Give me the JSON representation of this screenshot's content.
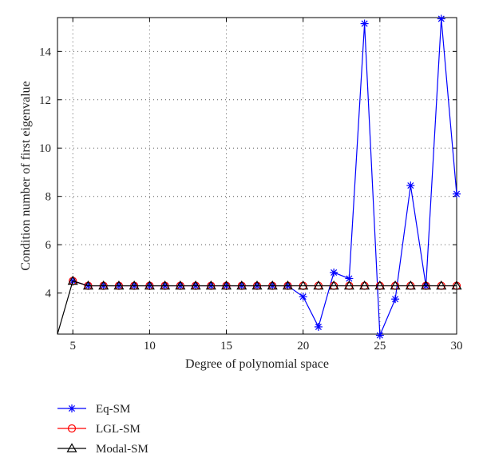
{
  "chart_data": {
    "type": "line",
    "xlabel": "Degree of polynomial space",
    "ylabel": "Condition number of first eigenvalue",
    "xlim": [
      4,
      30
    ],
    "ylim": [
      2.3,
      15.4
    ],
    "xticks": [
      5,
      10,
      15,
      20,
      25,
      30
    ],
    "yticks": [
      4,
      6,
      8,
      10,
      12,
      14
    ],
    "grid": true,
    "legend_position": "bottom-left, below plot",
    "x": [
      4,
      5,
      6,
      7,
      8,
      9,
      10,
      11,
      12,
      13,
      14,
      15,
      16,
      17,
      18,
      19,
      20,
      21,
      22,
      23,
      24,
      25,
      26,
      27,
      28,
      29,
      30
    ],
    "series": [
      {
        "name": "Eq-SM",
        "color": "#0000ff",
        "marker": "asterisk",
        "values": [
          null,
          4.5,
          4.3,
          4.3,
          4.3,
          4.3,
          4.3,
          4.3,
          4.3,
          4.3,
          4.3,
          4.3,
          4.3,
          4.3,
          4.3,
          4.3,
          3.85,
          2.6,
          4.85,
          4.6,
          15.15,
          2.25,
          3.75,
          8.45,
          4.3,
          15.35,
          8.1
        ]
      },
      {
        "name": "LGL-SM",
        "color": "#ff0000",
        "marker": "circle",
        "values": [
          null,
          4.5,
          4.3,
          4.3,
          4.3,
          4.3,
          4.3,
          4.3,
          4.3,
          4.3,
          4.3,
          4.3,
          4.3,
          4.3,
          4.3,
          4.3,
          4.3,
          4.3,
          4.3,
          4.3,
          4.3,
          4.3,
          4.3,
          4.3,
          4.3,
          4.3,
          4.3
        ]
      },
      {
        "name": "Modal-SM",
        "color": "#000000",
        "marker": "triangle",
        "values": [
          2.3,
          4.5,
          4.3,
          4.3,
          4.3,
          4.3,
          4.3,
          4.3,
          4.3,
          4.3,
          4.3,
          4.3,
          4.3,
          4.3,
          4.3,
          4.3,
          4.3,
          4.3,
          4.3,
          4.3,
          4.3,
          4.3,
          4.3,
          4.3,
          4.3,
          4.3,
          4.3
        ]
      }
    ]
  }
}
